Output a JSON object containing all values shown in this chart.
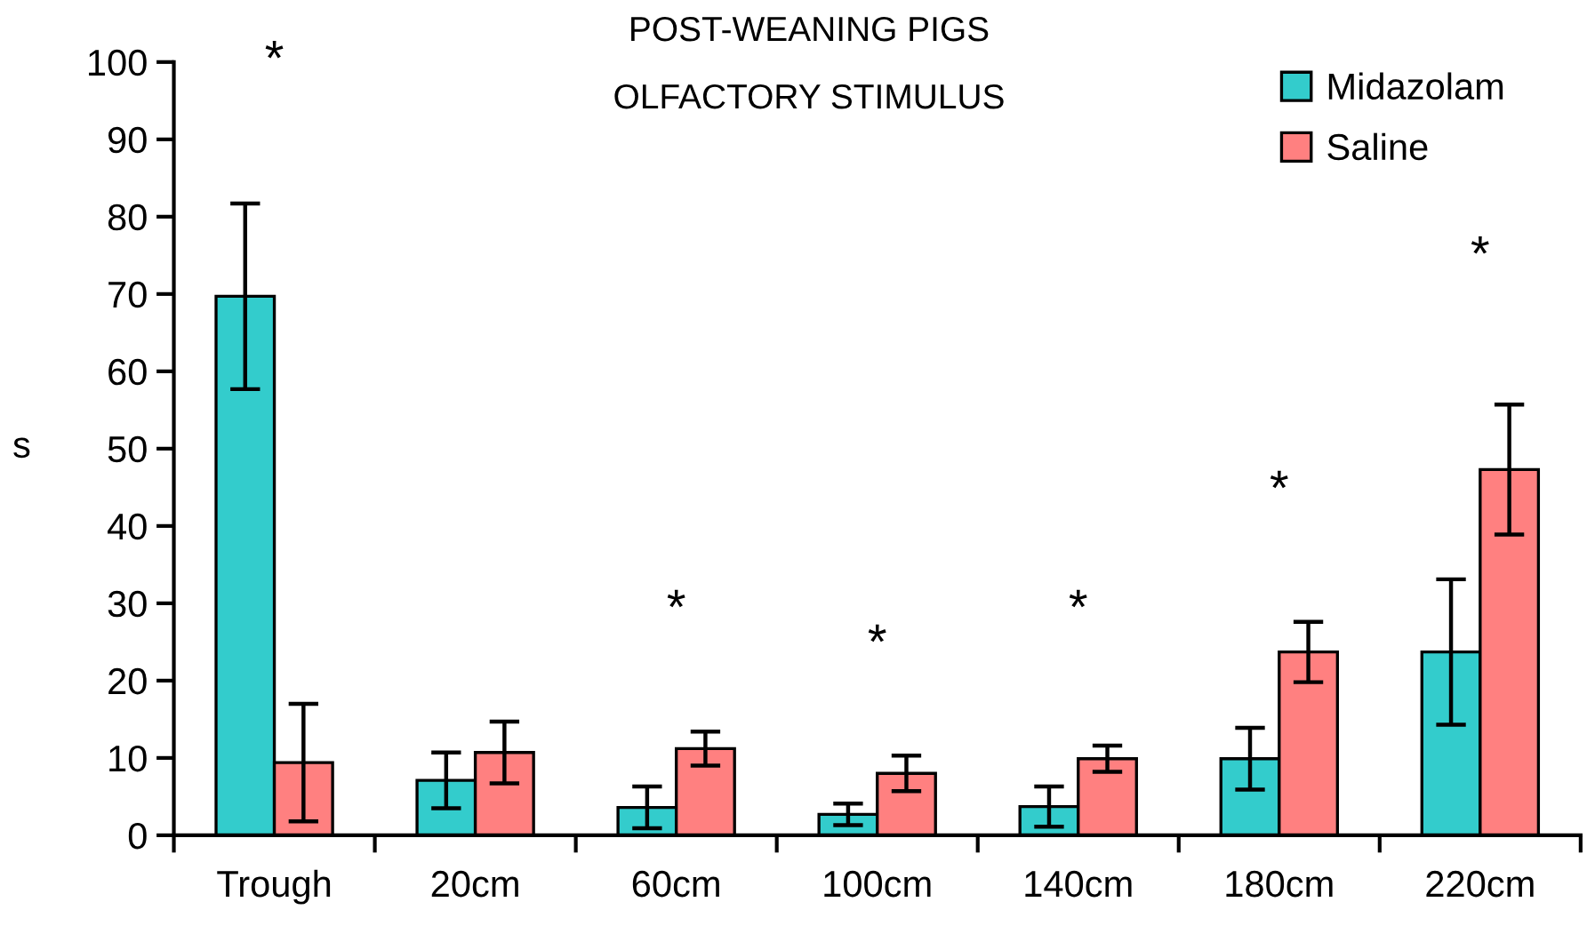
{
  "chart_data": {
    "type": "bar",
    "title": "POST-WEANING PIGS",
    "subtitle": "OLFACTORY STIMULUS",
    "ylabel": "s",
    "categories": [
      "Trough",
      "20cm",
      "60cm",
      "100cm",
      "140cm",
      "180cm",
      "220cm"
    ],
    "series": [
      {
        "name": "Midazolam",
        "color": "#33cccc",
        "values": [
          69.7,
          7.1,
          3.6,
          2.7,
          3.7,
          9.9,
          23.7
        ],
        "errors": [
          12.0,
          3.6,
          2.7,
          1.4,
          2.6,
          4.0,
          9.4
        ]
      },
      {
        "name": "Saline",
        "color": "#ff8080",
        "values": [
          9.4,
          10.7,
          11.2,
          8.0,
          9.9,
          23.7,
          47.3
        ],
        "errors": [
          7.6,
          4.0,
          2.2,
          2.3,
          1.7,
          3.9,
          8.4
        ]
      }
    ],
    "annotations": [
      "*",
      "*",
      "*",
      "*",
      "*",
      "*"
    ],
    "ylim": [
      0,
      100
    ],
    "yticks": [
      0,
      10,
      20,
      30,
      40,
      50,
      60,
      70,
      80,
      90,
      100
    ],
    "grid": false,
    "legend": "top right"
  }
}
